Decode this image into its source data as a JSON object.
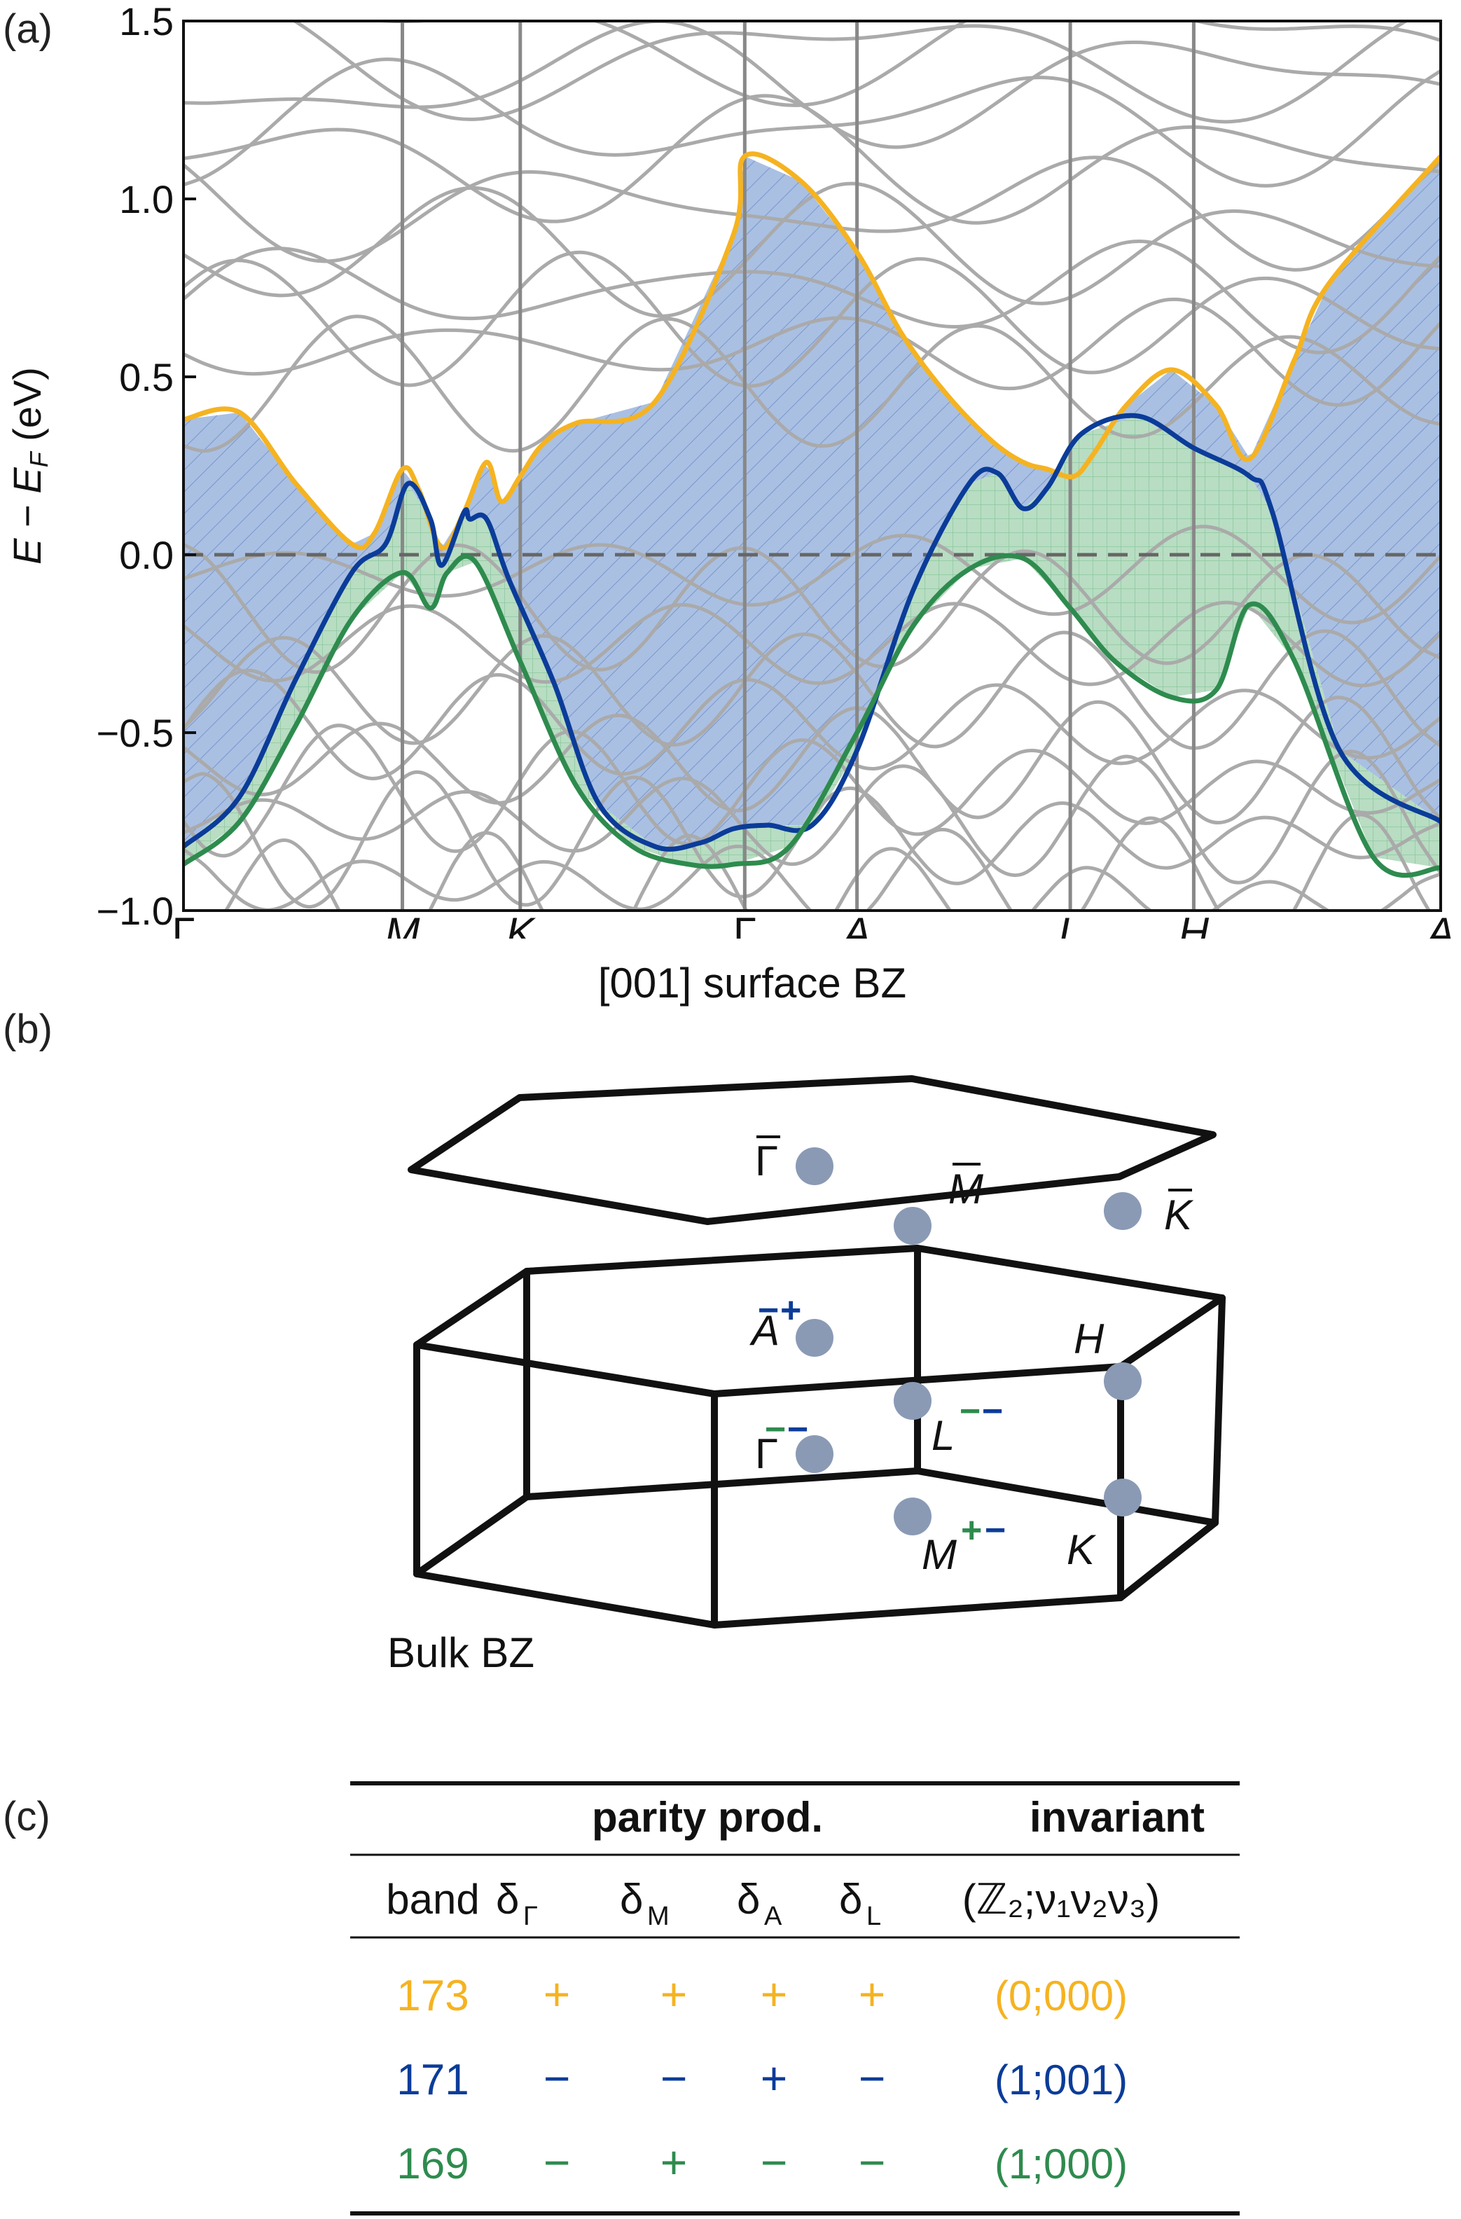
{
  "panel_labels": {
    "a": "(a)",
    "b": "(b)",
    "c": "(c)"
  },
  "colors": {
    "orange": "#F5B321",
    "blue": "#0B3C99",
    "green": "#2E8B4E",
    "gray": "#AAAAAA",
    "fill_blue": "#A9C0E3",
    "fill_green": "#B8DDC2",
    "bz_point": "#8A9AB5"
  },
  "chart_data": {
    "type": "line",
    "ylabel": "E − E_F (eV)",
    "ylim": [
      -1.0,
      1.5
    ],
    "yticks": [
      "1.5",
      "1.0",
      "0.5",
      "0.0",
      "−0.5",
      "−1.0"
    ],
    "kpath_labels": [
      "Γ",
      "M",
      "K",
      "Γ",
      "A",
      "L",
      "H",
      "A"
    ],
    "fermi_level": 0.0,
    "series": [
      {
        "name": "173",
        "color": "#F5B321",
        "x": [
          0,
          0.5,
          1.0,
          1.5,
          1.7,
          1.95,
          2.1,
          2.3,
          2.5,
          2.7,
          2.83,
          3.0,
          3.2,
          3.5,
          4.2,
          4.9,
          5.0,
          5.5,
          6.0,
          6.4,
          6.8,
          7.2,
          7.48,
          7.7,
          7.93,
          8.1,
          8.4,
          8.8,
          9.2,
          9.5,
          9.9,
          10.2,
          11.2
        ],
        "y": [
          0.38,
          0.4,
          0.2,
          0.03,
          0.06,
          0.24,
          0.18,
          0.02,
          0.12,
          0.26,
          0.15,
          0.22,
          0.31,
          0.37,
          0.43,
          0.9,
          1.12,
          1.05,
          0.85,
          0.62,
          0.45,
          0.32,
          0.26,
          0.24,
          0.22,
          0.28,
          0.42,
          0.52,
          0.42,
          0.27,
          0.55,
          0.76,
          1.12
        ]
      },
      {
        "name": "171",
        "color": "#0B3C99",
        "x": [
          0,
          0.5,
          1.0,
          1.5,
          1.8,
          2.0,
          2.2,
          2.3,
          2.5,
          2.55,
          2.7,
          2.9,
          3.3,
          3.7,
          4.2,
          4.6,
          4.9,
          5.2,
          5.6,
          6.0,
          6.5,
          7.0,
          7.25,
          7.48,
          7.7,
          8.0,
          8.5,
          9.0,
          9.5,
          9.7,
          10.3,
          11.2
        ],
        "y": [
          -0.82,
          -0.68,
          -0.35,
          -0.05,
          0.03,
          0.2,
          0.1,
          -0.03,
          0.12,
          0.1,
          0.1,
          -0.07,
          -0.36,
          -0.7,
          -0.82,
          -0.81,
          -0.77,
          -0.76,
          -0.76,
          -0.55,
          -0.1,
          0.2,
          0.23,
          0.13,
          0.19,
          0.34,
          0.39,
          0.3,
          0.22,
          0.12,
          -0.55,
          -0.75
        ]
      },
      {
        "name": "169",
        "color": "#2E8B4E",
        "x": [
          0,
          0.5,
          1.0,
          1.5,
          1.95,
          2.2,
          2.35,
          2.6,
          3.0,
          3.5,
          4.0,
          4.5,
          4.9,
          5.4,
          6.0,
          6.5,
          7.0,
          7.48,
          7.9,
          8.3,
          8.8,
          9.2,
          9.5,
          9.9,
          10.6,
          11.2
        ],
        "y": [
          -0.87,
          -0.75,
          -0.48,
          -0.18,
          -0.05,
          -0.15,
          -0.05,
          -0.02,
          -0.3,
          -0.65,
          -0.82,
          -0.87,
          -0.87,
          -0.82,
          -0.5,
          -0.2,
          -0.04,
          -0.01,
          -0.15,
          -0.3,
          -0.4,
          -0.38,
          -0.14,
          -0.3,
          -0.85,
          -0.88
        ]
      }
    ]
  },
  "panel_b": {
    "surface_title": "[001] surface BZ",
    "bulk_label": "Bulk BZ",
    "surface_points": [
      "Γ",
      "M",
      "K"
    ],
    "bulk_points": [
      {
        "label": "A",
        "parity": [
          "−",
          "+"
        ]
      },
      {
        "label": "Γ",
        "parity": [
          "−",
          "−"
        ]
      },
      {
        "label": "L",
        "parity": [
          "−",
          "−"
        ]
      },
      {
        "label": "M",
        "parity": [
          "+",
          "−"
        ]
      },
      {
        "label": "H"
      },
      {
        "label": "K"
      }
    ]
  },
  "table": {
    "header_group": {
      "parity": "parity prod.",
      "invariant": "invariant"
    },
    "columns": {
      "band": "band",
      "dG": "δ",
      "dG_sub": "Γ",
      "dM": "δ",
      "dM_sub": "M",
      "dA": "δ",
      "dA_sub": "A",
      "dL": "δ",
      "dL_sub": "L",
      "inv": "(ℤ₂;ν₁ν₂ν₃)"
    },
    "rows": [
      {
        "band": "173",
        "signs": [
          "+",
          "+",
          "+",
          "+"
        ],
        "inv": "(0;000)",
        "color": "#F5B321"
      },
      {
        "band": "171",
        "signs": [
          "−",
          "−",
          "+",
          "−"
        ],
        "inv": "(1;001)",
        "color": "#0B3C99"
      },
      {
        "band": "169",
        "signs": [
          "−",
          "+",
          "−",
          "−"
        ],
        "inv": "(1;000)",
        "color": "#2E8B4E"
      }
    ]
  }
}
